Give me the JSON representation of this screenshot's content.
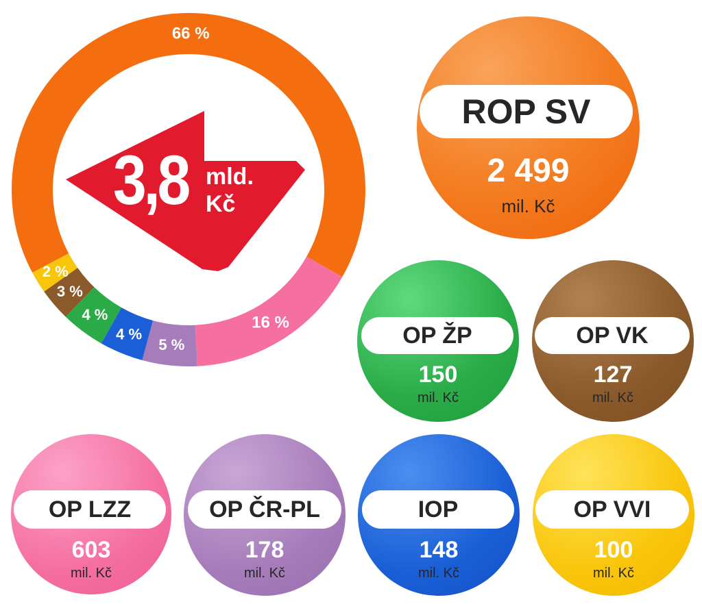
{
  "chart_data": {
    "type": "pie",
    "total": {
      "value": "3,8",
      "unit_line1": "mld.",
      "unit_line2": "Kč"
    },
    "unit": "mil. Kč",
    "series": [
      {
        "name": "ROP SV",
        "value": "2 499",
        "percent": 66,
        "percent_label": "66 %",
        "color": "#f46d0f"
      },
      {
        "name": "OP LZZ",
        "value": "603",
        "percent": 16,
        "percent_label": "16 %",
        "color": "#f56fa1"
      },
      {
        "name": "OP ČR-PL",
        "value": "178",
        "percent": 5,
        "percent_label": "5 %",
        "color": "#a67cba"
      },
      {
        "name": "IOP",
        "value": "148",
        "percent": 4,
        "percent_label": "4 %",
        "color": "#1a5fd6"
      },
      {
        "name": "OP ŽP",
        "value": "150",
        "percent": 4,
        "percent_label": "4 %",
        "color": "#2aab47"
      },
      {
        "name": "OP VK",
        "value": "127",
        "percent": 3,
        "percent_label": "3 %",
        "color": "#8b5a2b"
      },
      {
        "name": "OP VVI",
        "value": "100",
        "percent": 2,
        "percent_label": "2 %",
        "color": "#f9c50a"
      }
    ],
    "arrow_color": "#e11b2d"
  }
}
